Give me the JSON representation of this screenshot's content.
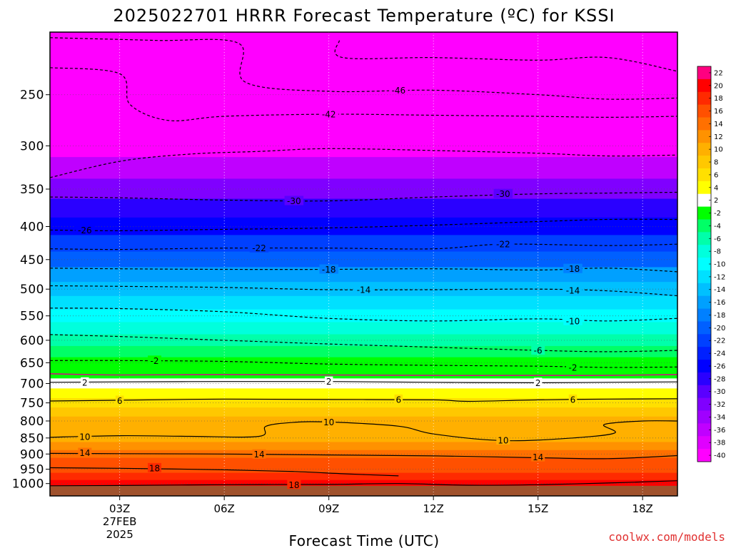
{
  "chart_data": {
    "type": "heatmap",
    "title": "2025022701 HRRR Forecast Temperature (ºC) for KSSI",
    "xlabel": "Forecast Time (UTC)",
    "ylabel": "",
    "x_ticks": [
      {
        "hour": 3,
        "label": "03Z",
        "sub1": "27FEB",
        "sub2": "2025"
      },
      {
        "hour": 6,
        "label": "06Z"
      },
      {
        "hour": 9,
        "label": "09Z"
      },
      {
        "hour": 12,
        "label": "12Z"
      },
      {
        "hour": 15,
        "label": "15Z"
      },
      {
        "hour": 18,
        "label": "18Z"
      }
    ],
    "xlim": [
      1,
      19
    ],
    "y_axis": "pressure_hPa",
    "y_scale": "log",
    "ylim": [
      1045,
      200
    ],
    "y_ticks": [
      250,
      300,
      350,
      400,
      450,
      500,
      550,
      600,
      650,
      700,
      750,
      800,
      850,
      900,
      950,
      1000
    ],
    "temperature_by_pressure": [
      {
        "p": 1000,
        "t": 20
      },
      {
        "p": 975,
        "t": 19
      },
      {
        "p": 950,
        "t": 17.5
      },
      {
        "p": 925,
        "t": 16
      },
      {
        "p": 900,
        "t": 14
      },
      {
        "p": 875,
        "t": 12.5
      },
      {
        "p": 850,
        "t": 10.5
      },
      {
        "p": 825,
        "t": 11
      },
      {
        "p": 800,
        "t": 10
      },
      {
        "p": 775,
        "t": 8
      },
      {
        "p": 750,
        "t": 6
      },
      {
        "p": 725,
        "t": 4
      },
      {
        "p": 700,
        "t": 2.5
      },
      {
        "p": 675,
        "t": 0.5
      },
      {
        "p": 660,
        "t": 1.5
      },
      {
        "p": 650,
        "t": -2
      },
      {
        "p": 625,
        "t": -4
      },
      {
        "p": 600,
        "t": -6
      },
      {
        "p": 575,
        "t": -8
      },
      {
        "p": 550,
        "t": -10
      },
      {
        "p": 525,
        "t": -12
      },
      {
        "p": 500,
        "t": -14
      },
      {
        "p": 475,
        "t": -16
      },
      {
        "p": 450,
        "t": -19
      },
      {
        "p": 425,
        "t": -22
      },
      {
        "p": 400,
        "t": -25
      },
      {
        "p": 375,
        "t": -28
      },
      {
        "p": 350,
        "t": -32
      },
      {
        "p": 325,
        "t": -36
      },
      {
        "p": 300,
        "t": -39
      },
      {
        "p": 275,
        "t": -42
      },
      {
        "p": 250,
        "t": -46
      },
      {
        "p": 200,
        "t": -50
      }
    ],
    "contour_lines": [
      {
        "level": 18,
        "style": "solid",
        "points": [
          [
            1,
            1008
          ],
          [
            3,
            1007
          ],
          [
            6,
            1004
          ],
          [
            9,
            1003
          ],
          [
            11,
            1000
          ],
          [
            13,
            1006
          ],
          [
            15,
            1004
          ],
          [
            17,
            998
          ],
          [
            19,
            990
          ]
        ]
      },
      {
        "level": 18,
        "style": "solid",
        "points": [
          [
            1,
            945
          ],
          [
            3,
            947
          ],
          [
            6,
            952
          ],
          [
            8,
            958
          ],
          [
            9.5,
            966
          ],
          [
            11,
            973
          ]
        ]
      },
      {
        "level": 14,
        "style": "solid",
        "points": [
          [
            1,
            898
          ],
          [
            3,
            899
          ],
          [
            6,
            900
          ],
          [
            9,
            903
          ],
          [
            12,
            906
          ],
          [
            15,
            912
          ],
          [
            17,
            915
          ],
          [
            19,
            905
          ]
        ]
      },
      {
        "level": 10,
        "style": "solid",
        "points": [
          [
            1,
            848
          ],
          [
            3,
            843
          ],
          [
            5,
            845
          ],
          [
            7,
            845
          ],
          [
            7.2,
            815
          ],
          [
            8,
            804
          ],
          [
            9,
            803
          ],
          [
            11,
            815
          ],
          [
            12,
            838
          ],
          [
            14,
            858
          ],
          [
            16,
            850
          ],
          [
            17.2,
            835
          ],
          [
            16.9,
            810
          ],
          [
            18,
            800
          ],
          [
            19,
            800
          ]
        ]
      },
      {
        "level": 6,
        "style": "solid",
        "points": [
          [
            1,
            745
          ],
          [
            3,
            743
          ],
          [
            6,
            740
          ],
          [
            9,
            741
          ],
          [
            12,
            742
          ],
          [
            13,
            746
          ],
          [
            15,
            742
          ],
          [
            17,
            740
          ],
          [
            19,
            739
          ]
        ]
      },
      {
        "level": 2,
        "style": "solid",
        "points": [
          [
            1,
            697
          ],
          [
            3,
            696
          ],
          [
            6,
            695
          ],
          [
            9,
            695
          ],
          [
            12,
            697
          ],
          [
            15,
            698
          ],
          [
            17,
            697
          ],
          [
            19,
            696
          ]
        ]
      },
      {
        "level": 0,
        "style": "freezing",
        "points": [
          [
            1,
            676
          ],
          [
            3,
            679
          ],
          [
            6,
            678
          ],
          [
            9,
            679
          ],
          [
            12,
            680
          ],
          [
            15,
            680
          ],
          [
            17,
            680
          ],
          [
            19,
            678
          ]
        ]
      },
      {
        "level": -2,
        "style": "dashed",
        "points": [
          [
            1,
            645
          ],
          [
            3,
            645
          ],
          [
            6,
            647
          ],
          [
            9,
            653
          ],
          [
            12,
            656
          ],
          [
            15,
            658
          ],
          [
            17,
            661
          ],
          [
            19,
            660
          ]
        ]
      },
      {
        "level": -6,
        "style": "dashed",
        "points": [
          [
            1,
            588
          ],
          [
            3,
            592
          ],
          [
            6,
            600
          ],
          [
            9,
            608
          ],
          [
            12,
            615
          ],
          [
            15,
            622
          ],
          [
            17,
            625
          ],
          [
            19,
            622
          ]
        ]
      },
      {
        "level": -10,
        "style": "dashed",
        "points": [
          [
            1,
            535
          ],
          [
            3,
            536
          ],
          [
            6,
            542
          ],
          [
            9,
            555
          ],
          [
            12,
            560
          ],
          [
            15,
            556
          ],
          [
            17,
            560
          ],
          [
            19,
            555
          ]
        ]
      },
      {
        "level": -14,
        "style": "dashed",
        "points": [
          [
            1,
            494
          ],
          [
            3,
            495
          ],
          [
            6,
            497
          ],
          [
            9,
            501
          ],
          [
            12,
            501
          ],
          [
            15,
            500
          ],
          [
            17,
            503
          ],
          [
            19,
            512
          ]
        ]
      },
      {
        "level": -18,
        "style": "dashed",
        "points": [
          [
            1,
            464
          ],
          [
            3,
            465
          ],
          [
            6,
            466
          ],
          [
            9,
            466
          ],
          [
            12,
            465
          ],
          [
            15,
            467
          ],
          [
            17,
            464
          ],
          [
            19,
            470
          ]
        ]
      },
      {
        "level": -22,
        "style": "dashed",
        "points": [
          [
            1,
            433
          ],
          [
            3,
            434
          ],
          [
            6,
            432
          ],
          [
            9,
            432
          ],
          [
            12,
            433
          ],
          [
            14,
            426
          ],
          [
            17,
            428
          ],
          [
            19,
            426
          ]
        ]
      },
      {
        "level": -26,
        "style": "dashed",
        "points": [
          [
            1,
            405
          ],
          [
            3,
            406
          ],
          [
            6,
            404
          ],
          [
            9,
            402
          ],
          [
            12,
            398
          ],
          [
            15,
            393
          ],
          [
            17,
            390
          ],
          [
            19,
            390
          ]
        ]
      },
      {
        "level": -30,
        "style": "dashed",
        "points": [
          [
            1,
            360
          ],
          [
            3,
            361
          ],
          [
            6,
            364
          ],
          [
            9,
            365
          ],
          [
            12,
            360
          ],
          [
            15,
            356
          ],
          [
            17,
            355
          ],
          [
            19,
            354
          ]
        ]
      },
      {
        "level": -34,
        "style": "dashed",
        "points": [
          [
            1,
            336
          ],
          [
            3,
            317
          ],
          [
            5,
            309
          ],
          [
            7,
            306
          ],
          [
            9,
            303
          ],
          [
            12,
            305
          ],
          [
            15,
            308
          ],
          [
            17,
            311
          ],
          [
            19,
            310
          ]
        ]
      },
      {
        "level": -42,
        "style": "dashed",
        "points": [
          [
            1,
            227
          ],
          [
            3,
            232
          ],
          [
            3.3,
            259
          ],
          [
            4.4,
            274
          ],
          [
            6,
            270
          ],
          [
            9,
            268
          ],
          [
            12,
            269
          ],
          [
            15,
            270
          ],
          [
            17,
            271
          ],
          [
            19,
            270
          ]
        ]
      },
      {
        "level": -46,
        "style": "dashed",
        "points": [
          [
            1,
            204
          ],
          [
            4,
            206
          ],
          [
            6.4,
            208
          ],
          [
            6.6,
            239
          ],
          [
            9,
            247
          ],
          [
            12,
            246
          ],
          [
            15,
            250
          ],
          [
            17,
            254
          ],
          [
            19,
            253
          ]
        ]
      },
      {
        "level": -50,
        "style": "dashed",
        "points": [
          [
            9.3,
            206
          ],
          [
            9.4,
            219
          ],
          [
            12,
            219
          ],
          [
            15,
            221
          ],
          [
            17,
            219
          ],
          [
            19,
            230
          ]
        ]
      }
    ],
    "contour_labels": [
      {
        "text": "18",
        "x": 4,
        "p": 946
      },
      {
        "text": "18",
        "x": 8,
        "p": 1004
      },
      {
        "text": "14",
        "x": 2,
        "p": 896
      },
      {
        "text": "14",
        "x": 7,
        "p": 901
      },
      {
        "text": "14",
        "x": 15,
        "p": 910
      },
      {
        "text": "10",
        "x": 2,
        "p": 846
      },
      {
        "text": "10",
        "x": 9,
        "p": 803
      },
      {
        "text": "10",
        "x": 14,
        "p": 857
      },
      {
        "text": "6",
        "x": 3,
        "p": 744
      },
      {
        "text": "6",
        "x": 11,
        "p": 741
      },
      {
        "text": "6",
        "x": 16,
        "p": 741
      },
      {
        "text": "2",
        "x": 2,
        "p": 697
      },
      {
        "text": "2",
        "x": 9,
        "p": 695
      },
      {
        "text": "2",
        "x": 15,
        "p": 698
      },
      {
        "text": "-2",
        "x": 4,
        "p": 645
      },
      {
        "text": "-2",
        "x": 16,
        "p": 661
      },
      {
        "text": "-6",
        "x": 15,
        "p": 622
      },
      {
        "text": "-10",
        "x": 16,
        "p": 560
      },
      {
        "text": "-14",
        "x": 10,
        "p": 501
      },
      {
        "text": "-14",
        "x": 16,
        "p": 502
      },
      {
        "text": "-18",
        "x": 9,
        "p": 466
      },
      {
        "text": "-18",
        "x": 16,
        "p": 465
      },
      {
        "text": "-22",
        "x": 7,
        "p": 432
      },
      {
        "text": "-22",
        "x": 14,
        "p": 426
      },
      {
        "text": "-26",
        "x": 2,
        "p": 405
      },
      {
        "text": "-30",
        "x": 8,
        "p": 365
      },
      {
        "text": "-30",
        "x": 14,
        "p": 356
      },
      {
        "text": "-42",
        "x": 9,
        "p": 268
      },
      {
        "text": "-46",
        "x": 11,
        "p": 246
      }
    ],
    "colorbar": {
      "levels": [
        22,
        20,
        18,
        16,
        14,
        12,
        10,
        8,
        6,
        4,
        2,
        -2,
        -4,
        -6,
        -8,
        -10,
        -12,
        -14,
        -16,
        -18,
        -20,
        -22,
        -24,
        -26,
        -28,
        -30,
        -32,
        -34,
        -36,
        -38,
        -40
      ],
      "colors": [
        "#ff0080",
        "#ff0000",
        "#ff2a00",
        "#ff5000",
        "#ff7000",
        "#ff9200",
        "#ffb000",
        "#ffc800",
        "#ffe000",
        "#ffff00",
        "#ffffff",
        "#00ff00",
        "#00ff66",
        "#00ffaa",
        "#00ffdd",
        "#00ffff",
        "#00e0ff",
        "#00c0ff",
        "#00a0ff",
        "#0080ff",
        "#0060ff",
        "#0040ff",
        "#0020ff",
        "#0000ff",
        "#2a00ff",
        "#5a00ff",
        "#8000ff",
        "#a000ff",
        "#c000ff",
        "#e000ff",
        "#ff00ff"
      ]
    },
    "surface_color": "#a0522d",
    "grid": true
  },
  "credit": "coolwx.com/models"
}
